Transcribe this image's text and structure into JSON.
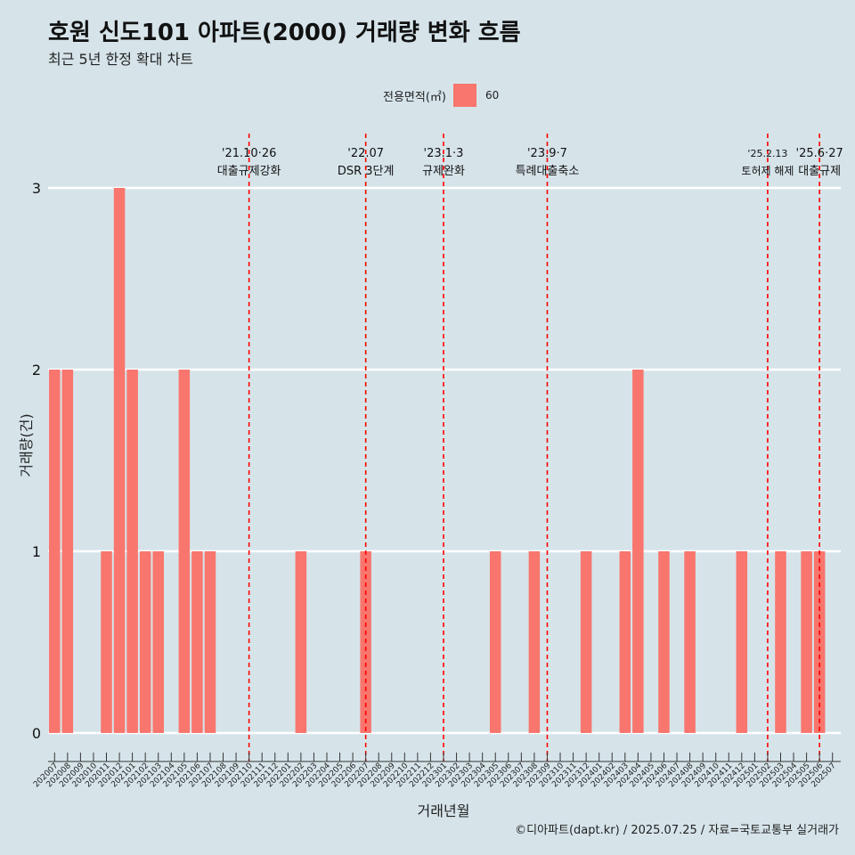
{
  "title": "호원 신도101 아파트(2000) 거래량 변화 흐름",
  "subtitle": "최근 5년 한정 확대 차트",
  "caption": "©디아파트(dapt.kr) / 2025.07.25 / 자료=국토교통부 실거래가",
  "colors": {
    "background": "#d6e4ea",
    "bar": "#f8766d",
    "event_line": "#ff0000",
    "grid": "#ffffff"
  },
  "chart_data": {
    "type": "bar",
    "xlabel": "거래년월",
    "ylabel": "거래량(건)",
    "ylim": [
      0,
      3
    ],
    "yticks": [
      0,
      1,
      2,
      3
    ],
    "grid": true,
    "legend": {
      "title": "전용면적(㎡)",
      "placement": "top",
      "entries": [
        "60"
      ]
    },
    "categories": [
      "202007",
      "202008",
      "202009",
      "202010",
      "202011",
      "202012",
      "202101",
      "202102",
      "202103",
      "202104",
      "202105",
      "202106",
      "202107",
      "202108",
      "202109",
      "202110",
      "202111",
      "202112",
      "202201",
      "202202",
      "202203",
      "202204",
      "202205",
      "202206",
      "202207",
      "202208",
      "202209",
      "202210",
      "202211",
      "202212",
      "202301",
      "202302",
      "202303",
      "202304",
      "202305",
      "202306",
      "202307",
      "202308",
      "202309",
      "202310",
      "202311",
      "202312",
      "202401",
      "202402",
      "202403",
      "202404",
      "202405",
      "202406",
      "202407",
      "202408",
      "202409",
      "202410",
      "202411",
      "202412",
      "202501",
      "202502",
      "202503",
      "202504",
      "202505",
      "202506",
      "202507"
    ],
    "series": [
      {
        "name": "60",
        "values": [
          2,
          2,
          0,
          0,
          1,
          3,
          2,
          1,
          1,
          0,
          2,
          1,
          1,
          0,
          0,
          0,
          0,
          0,
          0,
          1,
          0,
          0,
          0,
          0,
          1,
          0,
          0,
          0,
          0,
          0,
          0,
          0,
          0,
          0,
          1,
          0,
          0,
          1,
          0,
          0,
          0,
          1,
          0,
          0,
          1,
          2,
          0,
          1,
          0,
          1,
          0,
          0,
          0,
          1,
          0,
          0,
          1,
          0,
          1,
          1,
          0
        ]
      }
    ],
    "annotations": [
      {
        "x": "202110",
        "date": "'21.10·26",
        "label": "대출규제강화"
      },
      {
        "x": "202207",
        "date": "'22.07",
        "label": "DSR 3단계"
      },
      {
        "x": "202301",
        "date": "'23.1·3",
        "label": "규제완화"
      },
      {
        "x": "202309",
        "date": "'23.9·7",
        "label": "특례대출축소"
      },
      {
        "x": "202502",
        "date": "'25.2.13",
        "label": "토허제 해제"
      },
      {
        "x": "202506",
        "date": "'25.6·27",
        "label": "대출규제"
      }
    ]
  }
}
